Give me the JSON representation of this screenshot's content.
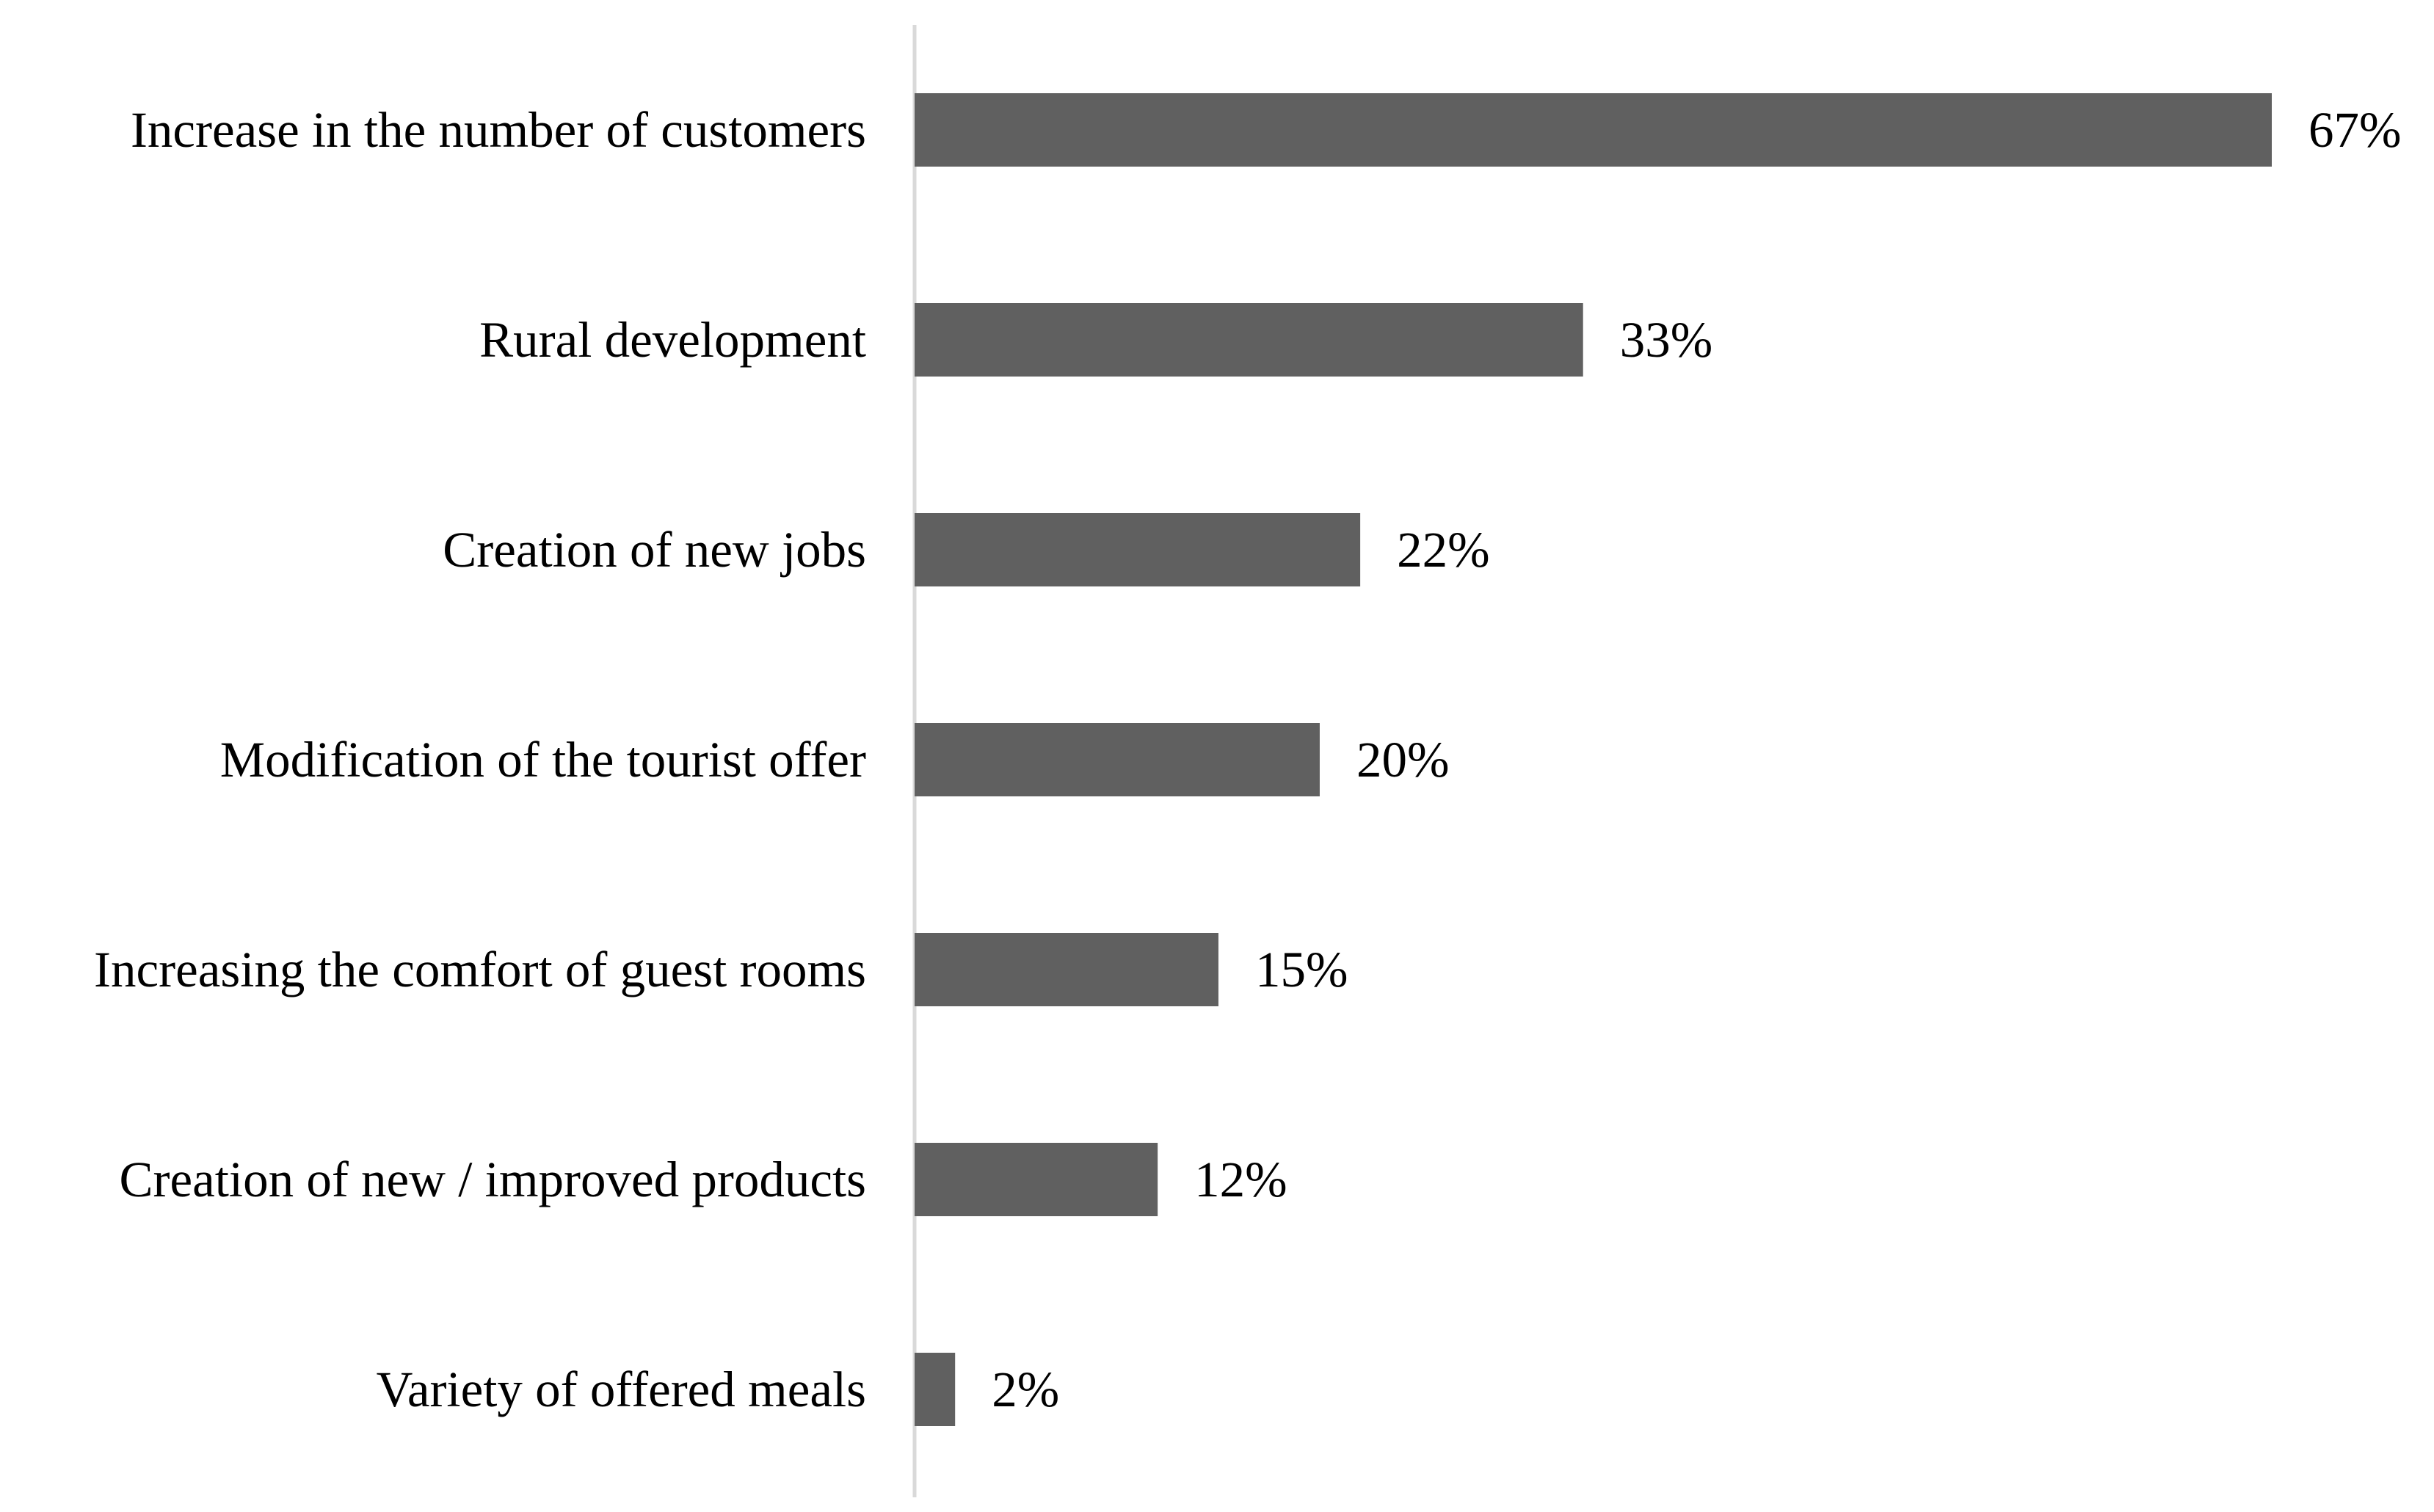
{
  "chart_data": {
    "type": "bar",
    "orientation": "horizontal",
    "title": "",
    "xlabel": "",
    "ylabel": "",
    "xlim": [
      0,
      67
    ],
    "grid": false,
    "categories": [
      "Increase in the number of customers",
      "Rural development",
      "Creation of new jobs",
      "Modification of the tourist offer",
      "Increasing the comfort of guest rooms",
      "Creation of new / improved products",
      "Variety of offered meals"
    ],
    "values": [
      67,
      33,
      22,
      20,
      15,
      12,
      2
    ],
    "value_labels": [
      "67%",
      "33%",
      "22%",
      "20%",
      "15%",
      "12%",
      "2%"
    ],
    "bar_color": "#606060",
    "axis_color": "#d9d9d9"
  }
}
